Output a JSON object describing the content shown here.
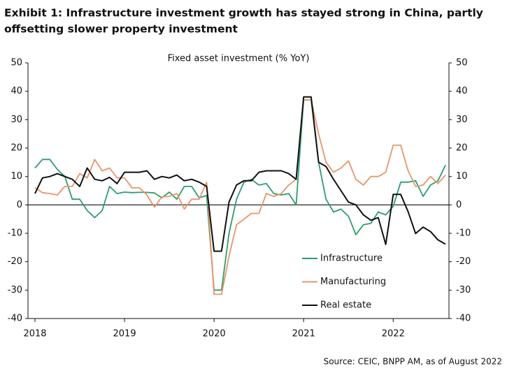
{
  "chart_data": {
    "type": "line",
    "title": [
      "Exhibit 1: Infrastructure investment growth has stayed strong in China, partly",
      "offsetting slower property investment"
    ],
    "subtitle": "Fixed asset investment (% YoY)",
    "source": "Source: CEIC, BNPP AM, as of August 2022",
    "categories": [
      "2018",
      null,
      null,
      null,
      null,
      null,
      null,
      null,
      null,
      null,
      null,
      null,
      "2019",
      null,
      null,
      null,
      null,
      null,
      null,
      null,
      null,
      null,
      null,
      null,
      "2020",
      null,
      null,
      null,
      null,
      null,
      null,
      null,
      null,
      null,
      null,
      null,
      "2021",
      null,
      null,
      null,
      null,
      null,
      null,
      null,
      null,
      null,
      null,
      null,
      "2022",
      null,
      null,
      null,
      null,
      null,
      null,
      null
    ],
    "series": [
      {
        "name": "Infrastructure",
        "color": "#2e9c6e",
        "values": [
          13,
          16,
          16,
          12.5,
          10,
          2,
          2,
          -2,
          -4.5,
          -2,
          6.5,
          4,
          4.5,
          4.3,
          4.4,
          4.4,
          4.2,
          2.5,
          4.5,
          2,
          6.5,
          6.5,
          2.5,
          3.3,
          -30,
          -30,
          -10,
          2,
          8,
          9,
          7,
          7.5,
          4,
          3.5,
          4,
          0,
          37,
          37,
          15,
          2,
          -2.5,
          -1.5,
          -4,
          -10.5,
          -7,
          -6.5,
          -2.5,
          -3.5,
          -0.5,
          8,
          8,
          8.5,
          3,
          7,
          8.5,
          14
        ]
      },
      {
        "name": "Manufacturing",
        "color": "#e8956b",
        "values": [
          6,
          4.3,
          4,
          3.5,
          6.5,
          6.5,
          11,
          9.5,
          16,
          12,
          13,
          9.5,
          9.5,
          6,
          6,
          3.5,
          -0.8,
          2.8,
          3,
          4,
          -1.5,
          2,
          2,
          8,
          -31.5,
          -31.5,
          -18,
          -7,
          -5,
          -3,
          -3,
          4,
          3,
          4,
          7,
          9,
          37,
          37,
          25,
          15,
          11.5,
          13,
          15.5,
          9,
          7,
          10,
          10,
          11.5,
          21,
          21,
          12,
          6.5,
          7,
          10,
          7.5,
          10.5
        ]
      },
      {
        "name": "Real estate",
        "color": "#111111",
        "values": [
          4,
          9.5,
          10,
          11,
          10,
          9,
          6.5,
          13,
          9,
          8.5,
          9.7,
          7.5,
          11.5,
          11.5,
          11.5,
          12,
          9,
          10,
          9.5,
          10.5,
          8.5,
          9,
          8,
          6.5,
          -16.3,
          -16.3,
          1,
          7,
          8.5,
          8.5,
          11.5,
          12,
          12,
          12,
          11,
          9,
          38,
          38,
          15,
          13.5,
          9,
          5,
          1,
          0,
          -3.5,
          -5.4,
          -4.5,
          -13.9,
          3.7,
          3.7,
          -2.4,
          -10.1,
          -7.8,
          -9.4,
          -12.3,
          -13.8
        ]
      }
    ],
    "ylim": [
      -40,
      50
    ],
    "yticks": [
      -40,
      -30,
      -20,
      -10,
      0,
      10,
      20,
      30,
      40,
      50
    ],
    "y2lim": [
      -40,
      50
    ],
    "y2ticks": [
      -40,
      -30,
      -20,
      -10,
      0,
      10,
      20,
      30,
      40,
      50
    ],
    "grid": false,
    "legend": "lower right"
  }
}
